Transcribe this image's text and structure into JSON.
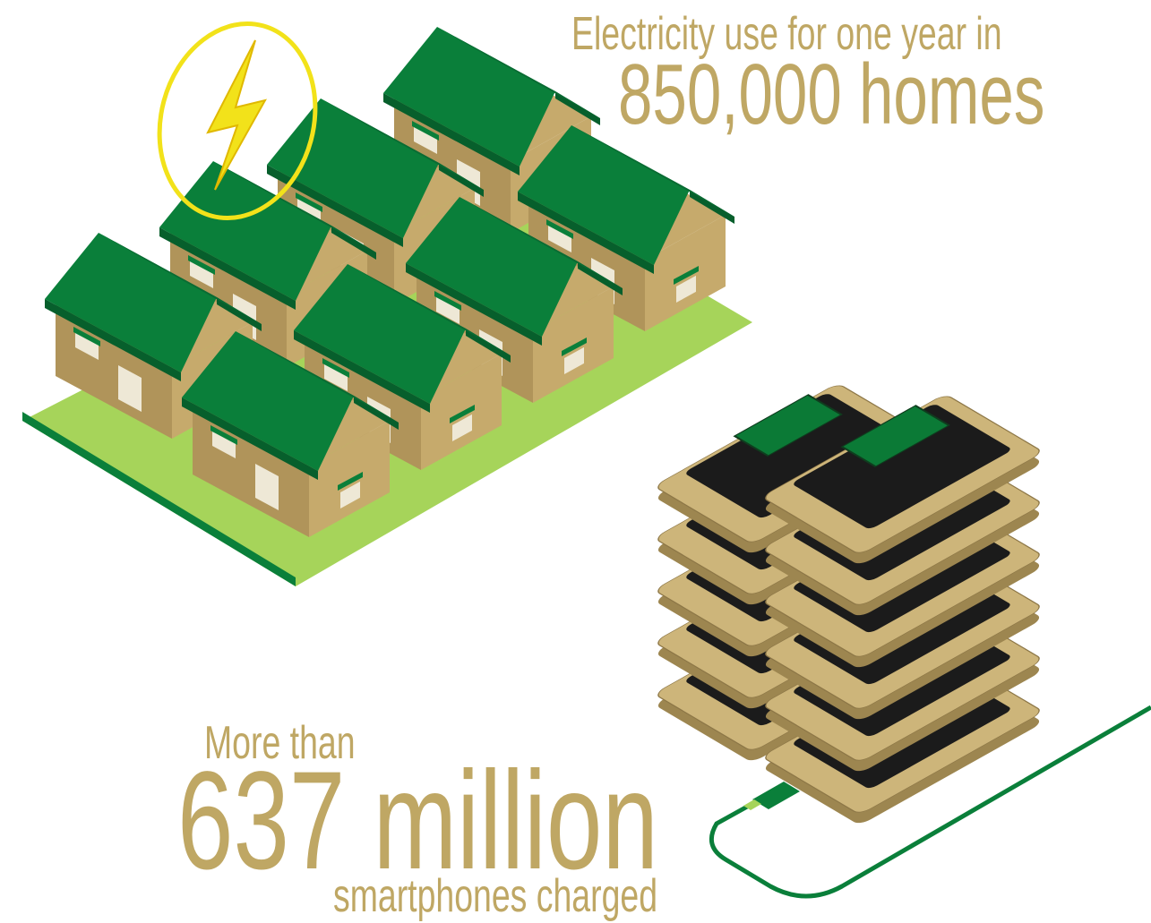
{
  "top": {
    "caption": "Electricity use for one year in",
    "headline": "850,000 homes"
  },
  "bottom": {
    "intro": "More than",
    "headline": "637 million",
    "caption": "smartphones charged"
  }
}
